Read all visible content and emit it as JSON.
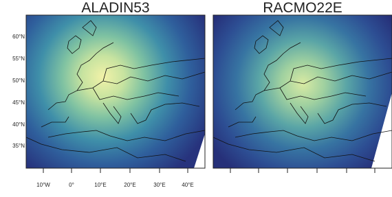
{
  "panels": [
    {
      "title": "ALADIN53"
    },
    {
      "title": "RACMO22E"
    }
  ],
  "lat_labels": [
    "60°N",
    "55°N",
    "50°N",
    "45°N",
    "40°N",
    "35°N"
  ],
  "lon_labels": [
    "10°W",
    "0°",
    "10°E",
    "20°E",
    "30°E",
    "40°E"
  ]
}
